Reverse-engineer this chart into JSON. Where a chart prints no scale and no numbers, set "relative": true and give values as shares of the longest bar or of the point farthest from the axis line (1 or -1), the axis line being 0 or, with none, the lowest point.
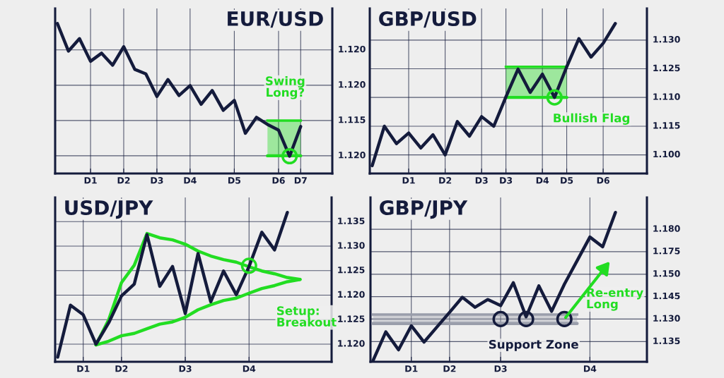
{
  "chart_data": [
    {
      "type": "line",
      "title": "EUR/USD",
      "relative": true,
      "grid": "x",
      "categories": [
        null,
        null,
        null,
        "D1",
        null,
        null,
        "D2",
        null,
        null,
        "D3",
        null,
        null,
        "D4",
        null,
        null,
        null,
        "D5",
        null,
        null,
        null,
        "D6",
        null,
        "D7"
      ],
      "series": [
        {
          "color": "#22dd22",
          "values": [
            null,
            null,
            null,
            null,
            null,
            null,
            null,
            null,
            null,
            null,
            null,
            null,
            null,
            null,
            null,
            null,
            null,
            null,
            null,
            0.118,
            0.118,
            0.118,
            0.118
          ]
        },
        {
          "type": "area",
          "color": "#22dd22",
          "values": [
            null,
            null,
            null,
            null,
            null,
            null,
            null,
            null,
            null,
            null,
            null,
            null,
            null,
            null,
            null,
            null,
            null,
            null,
            null,
            0.353,
            0.353,
            0.353,
            0.353
          ]
        },
        {
          "color": "#141b3c",
          "values": [
            1.0,
            0.816,
            0.899,
            0.748,
            0.802,
            0.722,
            0.845,
            0.694,
            0.664,
            0.513,
            0.626,
            0.52,
            0.586,
            0.461,
            0.553,
            0.421,
            0.487,
            0.268,
            0.374,
            0.327,
            0.289,
            0.115,
            0.313
          ]
        },
        {
          "type": "scatter",
          "color": "#22dd22",
          "values": [
            null,
            null,
            null,
            null,
            null,
            null,
            null,
            null,
            null,
            null,
            null,
            null,
            null,
            null,
            null,
            null,
            null,
            null,
            null,
            null,
            null,
            0.115,
            null
          ]
        }
      ],
      "ref_lines": [
        {
          "axis": "y",
          "value": 0.118
        },
        {
          "axis": "y",
          "value": 0.353
        },
        {
          "axis": "y",
          "value": 0.588
        },
        {
          "axis": "y",
          "value": 0.824
        }
      ],
      "annotations": [
        "1.120",
        "1.115",
        "1.120",
        "1.120",
        "Swing\nLong?"
      ]
    },
    {
      "type": "line",
      "title": "GBP/USD",
      "relative": true,
      "grid": "x",
      "categories": [
        null,
        null,
        null,
        "D1",
        null,
        null,
        "D2",
        null,
        null,
        "D3",
        null,
        "D3",
        null,
        null,
        "D4",
        null,
        "D5",
        null,
        null,
        "D6",
        null
      ],
      "series": [
        {
          "color": "#22dd22",
          "values": [
            null,
            null,
            null,
            null,
            null,
            null,
            null,
            null,
            null,
            null,
            null,
            0.507,
            0.507,
            0.507,
            0.507,
            0.507,
            0.507,
            null,
            null,
            null,
            null
          ]
        },
        {
          "type": "area",
          "color": "#22dd22",
          "values": [
            null,
            null,
            null,
            null,
            null,
            null,
            null,
            null,
            null,
            null,
            null,
            0.711,
            0.711,
            0.711,
            0.711,
            0.711,
            0.711,
            null,
            null,
            null,
            null
          ]
        },
        {
          "color": "#141b3c",
          "values": [
            0.052,
            0.315,
            0.199,
            0.27,
            0.17,
            0.258,
            0.124,
            0.346,
            0.249,
            0.379,
            0.315,
            0.511,
            0.696,
            0.541,
            0.662,
            0.507,
            0.711,
            0.899,
            0.776,
            0.868,
            1.0
          ]
        },
        {
          "type": "scatter",
          "color": "#22dd22",
          "values": [
            null,
            null,
            null,
            null,
            null,
            null,
            null,
            null,
            null,
            null,
            null,
            null,
            null,
            null,
            null,
            0.507,
            null,
            null,
            null,
            null,
            null
          ]
        }
      ],
      "ref_lines": [
        {
          "axis": "y",
          "value": 0.124
        },
        {
          "axis": "y",
          "value": 0.315
        },
        {
          "axis": "y",
          "value": 0.507
        },
        {
          "axis": "y",
          "value": 0.698
        },
        {
          "axis": "y",
          "value": 0.889
        }
      ],
      "annotations": [
        "1.100",
        "1.115",
        "1.110",
        "1.125",
        "1.130",
        "Bullish Flag"
      ]
    },
    {
      "type": "line",
      "title": "USD/JPY",
      "relative": true,
      "grid": "x",
      "categories": [
        null,
        null,
        "D1",
        null,
        null,
        "D2",
        null,
        null,
        null,
        null,
        "D3",
        null,
        null,
        null,
        null,
        "D4",
        null,
        null,
        null,
        null
      ],
      "series": [
        {
          "color": "#22dd22",
          "values": [
            null,
            null,
            null,
            0.113,
            0.282,
            0.53,
            0.646,
            0.859,
            0.83,
            0.816,
            0.787,
            0.741,
            0.708,
            0.684,
            0.667,
            0.636,
            0.608,
            0.589,
            0.564,
            0.551
          ]
        },
        {
          "color": "#22dd22",
          "values": [
            null,
            null,
            null,
            0.113,
            0.138,
            0.174,
            0.19,
            0.221,
            0.252,
            0.267,
            0.298,
            0.348,
            0.382,
            0.41,
            0.426,
            0.459,
            0.49,
            0.51,
            0.536,
            0.551
          ]
        },
        {
          "color": "#141b3c",
          "values": [
            0.031,
            0.379,
            0.315,
            0.118,
            0.261,
            0.441,
            0.52,
            0.851,
            0.505,
            0.638,
            0.323,
            0.725,
            0.402,
            0.607,
            0.449,
            0.638,
            0.867,
            0.749,
            1.0,
            null
          ]
        },
        {
          "type": "scatter",
          "color": "#22dd22",
          "values": [
            null,
            null,
            null,
            null,
            null,
            null,
            null,
            null,
            null,
            null,
            null,
            null,
            null,
            null,
            null,
            0.643,
            null,
            null,
            null,
            null
          ]
        }
      ],
      "ref_lines": [
        {
          "axis": "y",
          "value": 0.118
        },
        {
          "axis": "y",
          "value": 0.282
        },
        {
          "axis": "y",
          "value": 0.446
        },
        {
          "axis": "y",
          "value": 0.61
        },
        {
          "axis": "y",
          "value": 0.774
        },
        {
          "axis": "y",
          "value": 0.938
        }
      ],
      "annotations": [
        "1.120",
        "1.125",
        "1.120",
        "1.125",
        "1.130",
        "1.135",
        "Setup:\nBreakout"
      ]
    },
    {
      "type": "line",
      "title": "GBP/JPY",
      "relative": true,
      "grid": "x",
      "categories": [
        null,
        null,
        null,
        "D1",
        null,
        null,
        "D2",
        null,
        null,
        null,
        "D3",
        null,
        null,
        null,
        null,
        null,
        null,
        "D4",
        null,
        null
      ],
      "series": [
        {
          "color": "#9a9eab",
          "values": [
            0.256,
            0.256,
            0.256,
            0.256,
            0.256,
            0.256,
            0.256,
            0.256,
            0.256,
            0.256,
            0.256,
            0.256,
            0.256,
            0.256,
            0.256,
            0.256,
            0.256,
            null,
            null,
            null
          ]
        },
        {
          "type": "area",
          "color": "#9a9eab",
          "values": [
            0.316,
            0.316,
            0.316,
            0.316,
            0.316,
            0.316,
            0.316,
            0.316,
            0.316,
            0.316,
            0.316,
            0.316,
            0.316,
            0.316,
            0.316,
            0.316,
            0.316,
            null,
            null,
            null
          ]
        },
        {
          "color": "#141b3c",
          "values": [
            0.008,
            0.2,
            0.08,
            0.241,
            0.132,
            0.232,
            0.331,
            0.432,
            0.365,
            0.417,
            0.376,
            0.529,
            0.301,
            0.508,
            0.338,
            0.519,
            0.677,
            0.835,
            0.77,
            1.0
          ]
        },
        {
          "type": "scatter",
          "color": "#141b3c",
          "values": [
            null,
            null,
            null,
            null,
            null,
            null,
            null,
            null,
            null,
            null,
            0.286,
            null,
            0.286,
            null,
            null,
            0.286,
            null,
            null,
            null,
            null
          ]
        }
      ],
      "ref_lines": [
        {
          "axis": "y",
          "value": 0.135
        },
        {
          "axis": "y",
          "value": 0.286
        },
        {
          "axis": "y",
          "value": 0.436
        },
        {
          "axis": "y",
          "value": 0.586
        },
        {
          "axis": "y",
          "value": 0.737
        },
        {
          "axis": "y",
          "value": 0.887
        }
      ],
      "annotations": [
        "1.135",
        "1.130",
        "1.145",
        "1.150",
        "1.175",
        "1.180",
        "Support Zone",
        "Re-entry\nLong"
      ]
    }
  ]
}
